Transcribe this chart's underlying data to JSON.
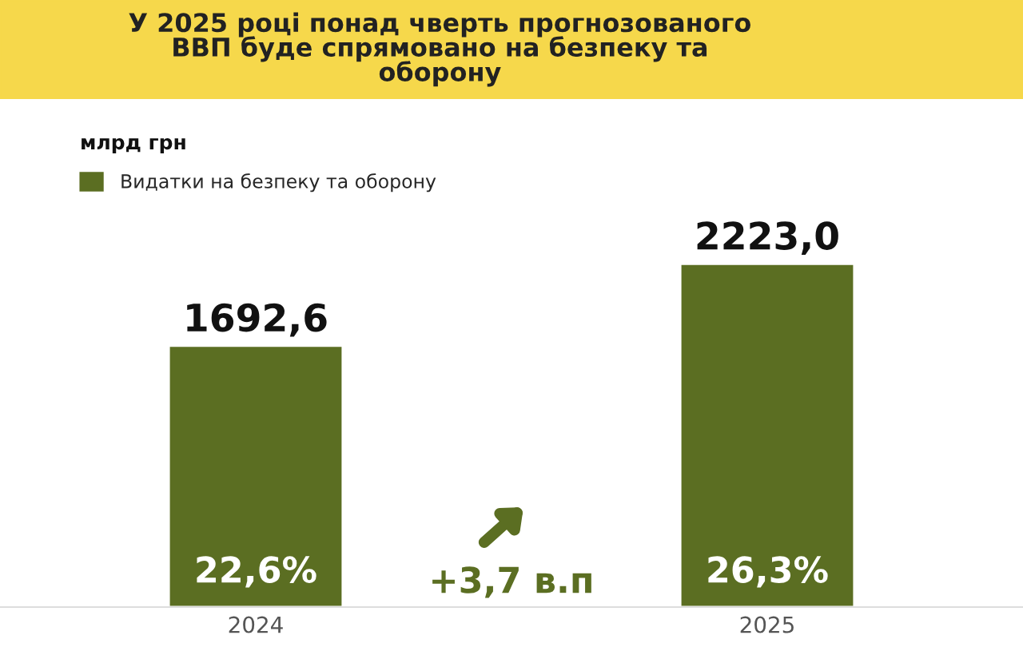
{
  "chart_data": {
    "type": "bar",
    "title": "У 2025 році понад чверть прогнозованого\nВВП буде спрямовано на безпеку та\nоборону",
    "categories": [
      "2024",
      "2025"
    ],
    "series": [
      {
        "name": "Видатки на безпеку та оборону",
        "color": "#5b6e22",
        "values": [
          1692.6,
          2223.0
        ],
        "value_labels": [
          "1692,6",
          "2223,0"
        ]
      }
    ],
    "annotations": [
      "млрд грн",
      "22,6%",
      "26,3%",
      "+3,7 в.п"
    ],
    "legend": "top left",
    "grid": false
  }
}
